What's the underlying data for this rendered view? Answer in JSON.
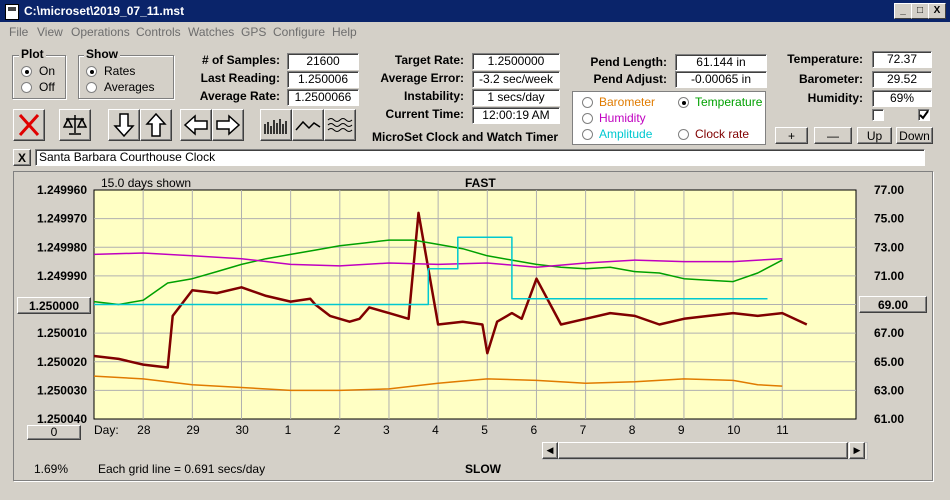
{
  "window": {
    "title": "C:\\microset\\2019_07_11.mst",
    "min": "_",
    "max": "□",
    "close": "X"
  },
  "menu": [
    "File",
    "View",
    "Operations",
    "Controls",
    "Watches",
    "GPS",
    "Configure",
    "Help"
  ],
  "plot": {
    "label": "Plot",
    "on": "On",
    "off": "Off",
    "selected": "On"
  },
  "show": {
    "label": "Show",
    "rates": "Rates",
    "averages": "Averages",
    "selected": "Rates"
  },
  "stats": {
    "samples_label": "# of Samples:",
    "samples": "21600",
    "last_reading_label": "Last Reading:",
    "last_reading": "1.250006",
    "average_rate_label": "Average Rate:",
    "average_rate": "1.2500066",
    "target_rate_label": "Target Rate:",
    "target_rate": "1.2500000",
    "average_error_label": "Average Error:",
    "average_error": "-3.2 sec/week",
    "instability_label": "Instability:",
    "instability": "1 secs/day",
    "current_time_label": "Current Time:",
    "current_time": "12:00:19 AM",
    "app_caption": "MicroSet Clock and Watch Timer",
    "pend_length_label": "Pend Length:",
    "pend_length": "61.144 in",
    "pend_adjust_label": "Pend Adjust:",
    "pend_adjust": "-0.00065 in",
    "temperature_label": "Temperature:",
    "temperature": "72.37",
    "barometer_label": "Barometer:",
    "barometer": "29.52",
    "humidity_label": "Humidity:",
    "humidity": "69%"
  },
  "overlay": {
    "barometer": "Barometer",
    "temperature": "Temperature",
    "humidity": "Humidity",
    "amplitude": "Amplitude",
    "clock_rate": "Clock rate",
    "selected": "Temperature",
    "colors": {
      "barometer": "#e07b00",
      "temperature": "#00a000",
      "humidity": "#c000c0",
      "amplitude": "#00c8d0",
      "clock_rate": "#800000"
    }
  },
  "scale_buttons": {
    "plus": "+",
    "minus": "—",
    "up": "Up",
    "down": "Down"
  },
  "clock_name": "Santa Barbara Courthouse Clock",
  "clock_close": "X",
  "chart_data": {
    "type": "line",
    "days_shown": "15.0 days shown",
    "top_label": "FAST",
    "bottom_label": "SLOW",
    "grid_note": "Each grid line = 0.691 secs/day",
    "percent": "1.69%",
    "xlabel": "Day:",
    "x_ticks": [
      "28",
      "29",
      "30",
      "1",
      "2",
      "3",
      "4",
      "5",
      "6",
      "7",
      "8",
      "9",
      "10",
      "11"
    ],
    "y_left_ticks": [
      "1.249960",
      "1.249970",
      "1.249980",
      "1.249990",
      "1.250000",
      "1.250010",
      "1.250020",
      "1.250030",
      "1.250040"
    ],
    "y_left_range": [
      1.24996,
      1.25004
    ],
    "y_left_selected": "1.250000",
    "y_right_ticks": [
      "77.00",
      "75.00",
      "73.00",
      "71.00",
      "69.00",
      "67.00",
      "65.00",
      "63.00",
      "61.00"
    ],
    "y_right_range": [
      61,
      77
    ],
    "y_right_selected": "69.00",
    "left_bottom_value": "0",
    "series": [
      {
        "name": "Clock rate",
        "color": "#800000",
        "x": [
          0,
          0.5,
          1.0,
          1.5,
          1.6,
          2.0,
          2.5,
          3.0,
          3.5,
          4.0,
          4.4,
          4.5,
          4.8,
          5.2,
          5.4,
          5.6,
          6.0,
          6.4,
          6.6,
          7.0,
          7.5,
          7.9,
          8.0,
          8.2,
          8.5,
          8.7,
          9.0,
          9.5,
          10.0,
          10.5,
          11.0,
          11.5,
          12.0,
          12.5,
          13.0,
          13.5,
          14.0,
          14.5
        ],
        "y": [
          1.250018,
          1.250019,
          1.250021,
          1.250022,
          1.250004,
          1.249995,
          1.249996,
          1.249994,
          1.249997,
          1.249999,
          1.249998,
          1.25,
          1.250004,
          1.250006,
          1.250005,
          1.250001,
          1.250003,
          1.250005,
          1.249968,
          1.250007,
          1.250006,
          1.250007,
          1.250017,
          1.250006,
          1.250003,
          1.250005,
          1.249991,
          1.250007,
          1.250005,
          1.250003,
          1.250004,
          1.250007,
          1.250005,
          1.250004,
          1.250003,
          1.250004,
          1.250003,
          1.250007
        ]
      },
      {
        "name": "Temperature",
        "color": "#00a000",
        "x": [
          0,
          0.5,
          1.0,
          1.5,
          2.0,
          2.5,
          3.0,
          3.5,
          4.0,
          4.5,
          5.0,
          5.5,
          6.0,
          6.5,
          7.0,
          7.5,
          8.0,
          8.5,
          9.0,
          9.5,
          10.0,
          10.5,
          11.0,
          11.5,
          12.0,
          12.5,
          13.0,
          13.5,
          14.0
        ],
        "y": [
          69.2,
          69.0,
          69.3,
          70.5,
          70.8,
          71.3,
          71.8,
          72.2,
          72.5,
          72.8,
          73.1,
          73.3,
          73.5,
          73.5,
          73.2,
          72.9,
          72.4,
          72.1,
          71.8,
          71.6,
          71.5,
          71.6,
          71.3,
          71.2,
          70.8,
          70.7,
          70.6,
          71.2,
          72.1
        ]
      },
      {
        "name": "Humidity",
        "color": "#c000c0",
        "x": [
          0,
          1,
          2,
          3,
          4,
          5,
          6,
          7,
          8,
          9,
          10,
          11,
          12,
          13,
          14
        ],
        "y": [
          72.5,
          72.6,
          72.4,
          72.2,
          71.8,
          71.7,
          71.9,
          71.8,
          71.9,
          71.6,
          71.9,
          72.1,
          72.0,
          72.0,
          72.2
        ]
      },
      {
        "name": "Amplitude",
        "color": "#00c8d0",
        "x": [
          0,
          6.8,
          6.8,
          7.4,
          7.4,
          8.5,
          8.5,
          13.7
        ],
        "y": [
          69.0,
          69.0,
          71.5,
          71.5,
          73.7,
          73.7,
          69.4,
          69.4
        ]
      },
      {
        "name": "Barometer",
        "color": "#e07b00",
        "x": [
          0,
          1,
          2,
          3,
          4,
          5,
          6,
          7,
          8,
          9,
          10,
          11,
          12,
          13,
          13.5,
          14
        ],
        "y": [
          64.0,
          63.8,
          63.4,
          63.2,
          63.0,
          63.0,
          63.1,
          63.5,
          63.8,
          63.7,
          63.5,
          63.6,
          63.8,
          63.7,
          63.4,
          63.3
        ]
      }
    ]
  }
}
